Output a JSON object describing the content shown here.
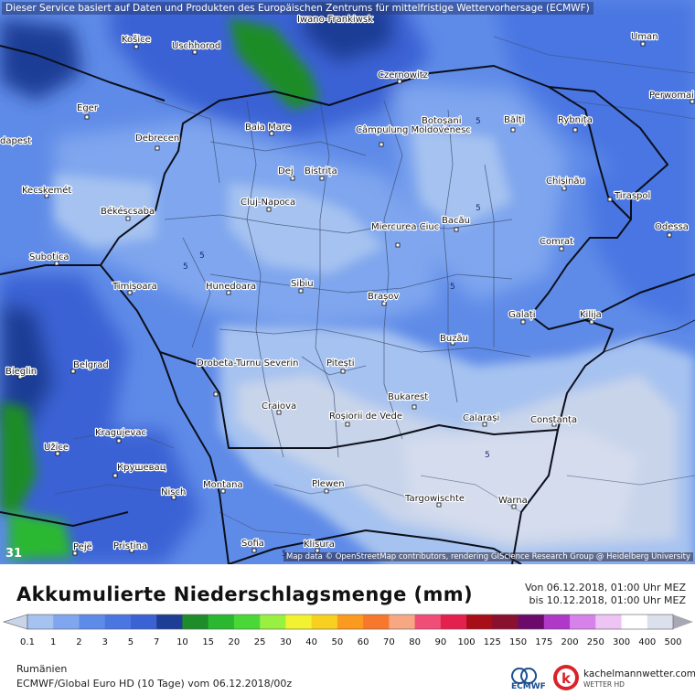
{
  "disclaimer": "Dieser Service basiert auf Daten und Produkten des Europäischen Zentrums für mittelfristige Wettervorhersage (ECMWF)",
  "attribution": "Map data © OpenStreetMap contributors, rendering GIScience Research Group @ Heidelberg University",
  "frame_number": "31",
  "title": "Akkumulierte Niederschlagsmenge (mm)",
  "period_from": "Von 06.12.2018, 01:00 Uhr MEZ",
  "period_to": "bis 10.12.2018, 01:00 Uhr MEZ",
  "region": "Rumänien",
  "model_line": "ECMWF/Global Euro HD (10 Tage) vom 06.12.2018/00z",
  "ecmwf_label": "ECMWF",
  "provider_name": "kachelmannwetter.com",
  "provider_sub": "WETTER HD",
  "isoline_labels": [
    "5",
    "5",
    "5",
    "5",
    "5",
    "5",
    "5"
  ],
  "cities": [
    "Iwano-Frankiwsk",
    "Košice",
    "Uschhorod",
    "Uman",
    "Czernowitz",
    "Perwomai",
    "Eger",
    "Baia Mare",
    "Câmpulung Moldovenesc",
    "Botoșani",
    "Bălți",
    "Rybnița",
    "dapest",
    "Debrecen",
    "Dej",
    "Bistrița",
    "Chișinău",
    "Tiraspol",
    "Kecskemét",
    "Cluj-Napoca",
    "Békéscsaba",
    "Miercurea Ciuc",
    "Bacău",
    "Odessa",
    "Comrat",
    "Subotica",
    "Timișoara",
    "Hunedoara",
    "Sibiu",
    "Brașov",
    "Galați",
    "Kilija",
    "Buzău",
    "Pitești",
    "Drobeta-Turnu Severin",
    "Bieglin",
    "Belgrad",
    "Craiova",
    "Roșiorii de Vede",
    "Bukarest",
    "Calarași",
    "Constanța",
    "Kragujevac",
    "Užice",
    "Крушевац",
    "Nisch",
    "Montana",
    "Plewen",
    "Targowischte",
    "Warna",
    "Pejë",
    "Pristina",
    "Sofia",
    "Klisura"
  ],
  "legend": {
    "tick_labels": [
      "0.1",
      "1",
      "2",
      "3",
      "5",
      "7",
      "10",
      "15",
      "20",
      "25",
      "30",
      "40",
      "50",
      "60",
      "70",
      "80",
      "90",
      "100",
      "125",
      "150",
      "175",
      "200",
      "250",
      "300",
      "400",
      "500"
    ],
    "colors": [
      "#c8d4ea",
      "#a6c2f0",
      "#7fa6ee",
      "#5f8be8",
      "#4a76e2",
      "#3a62d4",
      "#1e3e96",
      "#1e8c28",
      "#2ab830",
      "#4ad838",
      "#98f040",
      "#f2f230",
      "#f8d020",
      "#fb9a1e",
      "#f7782c",
      "#f7a882",
      "#f04e76",
      "#e4214e",
      "#a80e18",
      "#8a1030",
      "#6c0a6c",
      "#b038c8",
      "#d682ea",
      "#eec4f4",
      "#ffffff",
      "#dce0ec",
      "#a8a8b4"
    ]
  }
}
